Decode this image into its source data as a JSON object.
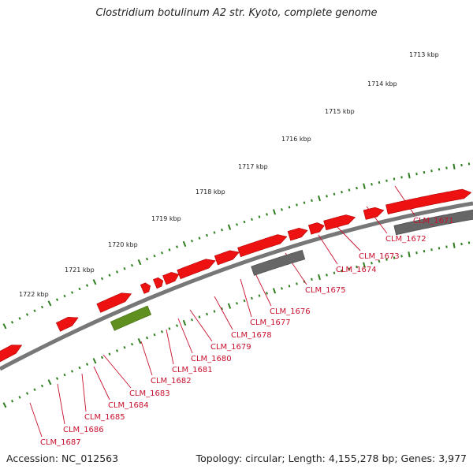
{
  "title": "Clostridium botulinum A2 str. Kyoto, complete genome",
  "footer": {
    "accession": "Accession: NC_012563",
    "genome_info": "Topology: circular; Length: 4,155,278 bp; Genes: 3,977"
  },
  "colors": {
    "backbone": "#777777",
    "tick": "#2e7d1e",
    "forward_gene": "#ee1111",
    "reverse_gene": "#666666",
    "highlight_gene": "#5e8f1f",
    "label": "#c8102e"
  },
  "kbp_labels": [
    "1713 kbp",
    "1714 kbp",
    "1715 kbp",
    "1716 kbp",
    "1717 kbp",
    "1718 kbp",
    "1719 kbp",
    "1720 kbp",
    "1721 kbp",
    "1722 kbp"
  ],
  "genes": [
    {
      "label": "CLM_1671",
      "strand": "reverse",
      "kind": "pseudo"
    },
    {
      "label": "CLM_1672",
      "strand": "forward",
      "kind": "normal"
    },
    {
      "label": "CLM_1673",
      "strand": "forward",
      "kind": "normal"
    },
    {
      "label": "CLM_1674",
      "strand": "forward",
      "kind": "normal"
    },
    {
      "label": "CLM_1675",
      "strand": "reverse",
      "kind": "pseudo"
    },
    {
      "label": "CLM_1676",
      "strand": "forward",
      "kind": "normal"
    },
    {
      "label": "CLM_1677",
      "strand": "forward",
      "kind": "normal"
    },
    {
      "label": "CLM_1678",
      "strand": "forward",
      "kind": "normal"
    },
    {
      "label": "CLM_1679",
      "strand": "forward",
      "kind": "normal"
    },
    {
      "label": "CLM_1680",
      "strand": "forward",
      "kind": "normal"
    },
    {
      "label": "CLM_1681",
      "strand": "forward",
      "kind": "normal"
    },
    {
      "label": "CLM_1682",
      "strand": "reverse",
      "kind": "highlight"
    },
    {
      "label": "CLM_1683",
      "strand": "forward",
      "kind": "normal"
    },
    {
      "label": "CLM_1684",
      "strand": "forward",
      "kind": "normal"
    },
    {
      "label": "CLM_1685",
      "strand": "forward",
      "kind": "normal"
    },
    {
      "label": "CLM_1686",
      "strand": "forward",
      "kind": "normal"
    },
    {
      "label": "CLM_1687",
      "strand": "forward",
      "kind": "normal"
    }
  ]
}
